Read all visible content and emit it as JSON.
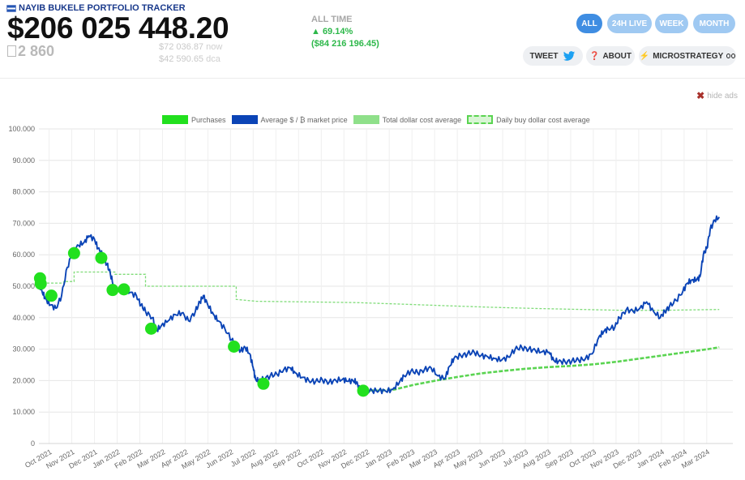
{
  "header": {
    "title": "NAYIB BUKELE PORTFOLIO TRACKER",
    "portfolio_value": "$206 025 448.20",
    "btc_amount": "2 860",
    "price_now": "$72 036.87",
    "price_now_suffix": "now",
    "price_dca": "$42 590.65",
    "price_dca_suffix": "dca"
  },
  "alltime": {
    "label": "ALL TIME",
    "pct": "▲ 69.14%",
    "abs": "($84 216 196.45)"
  },
  "range_buttons": [
    {
      "label": "ALL",
      "active": true
    },
    {
      "label": "24H LIVE",
      "active": false
    },
    {
      "label": "WEEK",
      "active": false
    },
    {
      "label": "MONTH",
      "active": false
    }
  ],
  "pills": {
    "tweet": "TWEET",
    "about": "ABOUT",
    "microstrategy": "MICROSTRATEGY"
  },
  "hide_ads": "hide ads",
  "colors": {
    "accent": "#3f8de2",
    "price_line": "#0b44b6",
    "purchases": "#22e01e",
    "total_dca": "#5ad451",
    "daily_dca": "#7fdc78",
    "positive": "#2db84a"
  },
  "chart_data": {
    "type": "line",
    "legend": [
      "Purchases",
      "Average $ / ₿ market price",
      "Total dollar cost average",
      "Daily buy dollar cost average"
    ],
    "x_labels": [
      "Oct 2021",
      "Nov 2021",
      "Dec 2021",
      "Jan 2022",
      "Feb 2022",
      "Mar 2022",
      "Apr 2022",
      "May 2022",
      "Jun 2022",
      "Jul 2022",
      "Aug 2022",
      "Sep 2022",
      "Oct 2022",
      "Nov 2022",
      "Dec 2022",
      "Jan 2023",
      "Feb 2023",
      "Mar 2023",
      "Apr 2023",
      "May 2023",
      "Jun 2023",
      "Jul 2023",
      "Aug 2023",
      "Sep 2023",
      "Oct 2023",
      "Nov 2023",
      "Dec 2023",
      "Jan 2024",
      "Feb 2024",
      "Mar 2024"
    ],
    "y_ticks": [
      "0",
      "10.000",
      "20.000",
      "30.000",
      "40.000",
      "50.000",
      "60.000",
      "70.000",
      "80.000",
      "90.000",
      "100.000"
    ],
    "ylim": [
      0,
      100000
    ],
    "xlim_months": [
      0,
      30.6
    ],
    "grid": true,
    "legend_position": "top",
    "series": [
      {
        "name": "Average $ / ₿ market price",
        "points": [
          [
            0,
            51000
          ],
          [
            0.15,
            48000
          ],
          [
            0.3,
            46000
          ],
          [
            0.5,
            44000
          ],
          [
            0.75,
            43000
          ],
          [
            1.0,
            47000
          ],
          [
            1.25,
            56000
          ],
          [
            1.5,
            61000
          ],
          [
            1.75,
            63000
          ],
          [
            2.0,
            64000
          ],
          [
            2.2,
            66000
          ],
          [
            2.45,
            65000
          ],
          [
            2.6,
            62000
          ],
          [
            2.8,
            60000
          ],
          [
            3.0,
            57000
          ],
          [
            3.15,
            54000
          ],
          [
            3.3,
            50000
          ],
          [
            3.5,
            48500
          ],
          [
            3.8,
            49000
          ],
          [
            4.0,
            48000
          ],
          [
            4.3,
            47000
          ],
          [
            4.5,
            44000
          ],
          [
            4.7,
            42000
          ],
          [
            5.0,
            40000
          ],
          [
            5.2,
            36000
          ],
          [
            5.4,
            37500
          ],
          [
            5.7,
            39000
          ],
          [
            6.0,
            41000
          ],
          [
            6.3,
            41500
          ],
          [
            6.6,
            39000
          ],
          [
            6.9,
            42000
          ],
          [
            7.1,
            45000
          ],
          [
            7.25,
            47000
          ],
          [
            7.45,
            44000
          ],
          [
            7.7,
            41000
          ],
          [
            7.9,
            39000
          ],
          [
            8.2,
            36500
          ],
          [
            8.5,
            33000
          ],
          [
            8.7,
            31000
          ],
          [
            8.9,
            29500
          ],
          [
            9.1,
            30500
          ],
          [
            9.3,
            28500
          ],
          [
            9.45,
            24000
          ],
          [
            9.55,
            20500
          ],
          [
            9.7,
            19800
          ],
          [
            9.9,
            20500
          ],
          [
            10.2,
            21500
          ],
          [
            10.5,
            22000
          ],
          [
            10.8,
            23500
          ],
          [
            11.1,
            24000
          ],
          [
            11.3,
            22500
          ],
          [
            11.6,
            21000
          ],
          [
            11.9,
            20000
          ],
          [
            12.2,
            19700
          ],
          [
            12.5,
            20200
          ],
          [
            12.8,
            19500
          ],
          [
            13.1,
            20000
          ],
          [
            13.4,
            20500
          ],
          [
            13.6,
            19800
          ],
          [
            13.85,
            20000
          ],
          [
            14.0,
            19500
          ],
          [
            14.15,
            17000
          ],
          [
            14.35,
            16200
          ],
          [
            14.7,
            16800
          ],
          [
            15.0,
            16900
          ],
          [
            15.3,
            16600
          ],
          [
            15.6,
            17200
          ],
          [
            15.9,
            19500
          ],
          [
            16.1,
            21500
          ],
          [
            16.4,
            23000
          ],
          [
            16.7,
            22500
          ],
          [
            17.0,
            23500
          ],
          [
            17.3,
            24000
          ],
          [
            17.6,
            21500
          ],
          [
            17.9,
            20500
          ],
          [
            18.1,
            24500
          ],
          [
            18.3,
            27000
          ],
          [
            18.6,
            28000
          ],
          [
            18.9,
            28500
          ],
          [
            19.2,
            29000
          ],
          [
            19.5,
            28000
          ],
          [
            19.8,
            27500
          ],
          [
            20.1,
            27000
          ],
          [
            20.4,
            26500
          ],
          [
            20.7,
            27500
          ],
          [
            21.0,
            30000
          ],
          [
            21.3,
            30500
          ],
          [
            21.6,
            30000
          ],
          [
            21.9,
            29500
          ],
          [
            22.2,
            29200
          ],
          [
            22.5,
            29000
          ],
          [
            22.7,
            26500
          ],
          [
            22.9,
            26000
          ],
          [
            23.2,
            26000
          ],
          [
            23.5,
            26200
          ],
          [
            23.8,
            26500
          ],
          [
            24.1,
            27000
          ],
          [
            24.4,
            28500
          ],
          [
            24.7,
            34000
          ],
          [
            24.9,
            35500
          ],
          [
            25.1,
            36500
          ],
          [
            25.4,
            37000
          ],
          [
            25.6,
            40000
          ],
          [
            25.9,
            42500
          ],
          [
            26.2,
            42000
          ],
          [
            26.5,
            43000
          ],
          [
            26.8,
            45000
          ],
          [
            27.1,
            42000
          ],
          [
            27.4,
            40000
          ],
          [
            27.6,
            42000
          ],
          [
            27.8,
            43500
          ],
          [
            28.1,
            45500
          ],
          [
            28.4,
            48500
          ],
          [
            28.6,
            51000
          ],
          [
            28.8,
            52000
          ],
          [
            29.0,
            52000
          ],
          [
            29.15,
            53000
          ],
          [
            29.3,
            60000
          ],
          [
            29.45,
            62000
          ],
          [
            29.6,
            68000
          ],
          [
            29.8,
            71000
          ],
          [
            30.0,
            72000
          ]
        ]
      },
      {
        "name": "Daily buy dollar cost average",
        "points": [
          [
            0,
            51000
          ],
          [
            1.1,
            51000
          ],
          [
            1.1,
            51500
          ],
          [
            1.55,
            51500
          ],
          [
            1.55,
            54500
          ],
          [
            3.35,
            54500
          ],
          [
            3.35,
            53800
          ],
          [
            4.7,
            53800
          ],
          [
            4.7,
            50000
          ],
          [
            8.7,
            50000
          ],
          [
            8.7,
            45800
          ],
          [
            9.6,
            45200
          ],
          [
            12,
            45000
          ],
          [
            14,
            44800
          ],
          [
            16,
            44300
          ],
          [
            18,
            43800
          ],
          [
            20,
            43300
          ],
          [
            22,
            42900
          ],
          [
            24,
            42600
          ],
          [
            26,
            42300
          ],
          [
            28,
            42400
          ],
          [
            30,
            42600
          ]
        ]
      },
      {
        "name": "Total dollar cost average",
        "points": [
          [
            14.1,
            17000
          ],
          [
            15,
            16800
          ],
          [
            15.7,
            17200
          ],
          [
            16.5,
            18600
          ],
          [
            17.5,
            20000
          ],
          [
            18.5,
            21200
          ],
          [
            19.5,
            22300
          ],
          [
            20.5,
            23100
          ],
          [
            21.5,
            23800
          ],
          [
            22.5,
            24300
          ],
          [
            23.5,
            24700
          ],
          [
            24.5,
            25200
          ],
          [
            25.5,
            26000
          ],
          [
            26.5,
            27000
          ],
          [
            27.5,
            28000
          ],
          [
            28.5,
            29000
          ],
          [
            29.5,
            30000
          ],
          [
            30,
            30600
          ]
        ]
      },
      {
        "name": "Purchases",
        "points": [
          [
            0.05,
            52500
          ],
          [
            0.08,
            50800
          ],
          [
            0.55,
            47000
          ],
          [
            1.55,
            60500
          ],
          [
            2.75,
            59000
          ],
          [
            3.25,
            48800
          ],
          [
            3.75,
            49000
          ],
          [
            4.95,
            36500
          ],
          [
            8.6,
            30800
          ],
          [
            9.9,
            19000
          ],
          [
            14.3,
            16800
          ]
        ]
      }
    ]
  }
}
